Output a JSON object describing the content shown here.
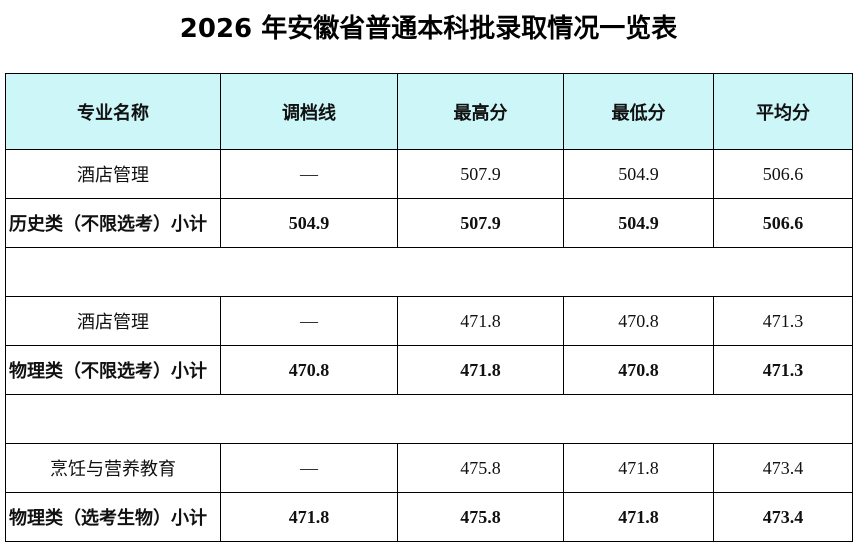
{
  "title": "2026 年安徽省普通本科批录取情况一览表",
  "table": {
    "header": [
      "专业名称",
      "调档线",
      "最高分",
      "最低分",
      "平均分"
    ],
    "rows": [
      [
        "酒店管理",
        "—",
        507.9,
        504.9,
        506.6
      ],
      [
        "历史类（不限选考）小计",
        504.9,
        507.9,
        504.9,
        506.6
      ],
      [
        "酒店管理",
        "—",
        471.8,
        470.8,
        471.3
      ],
      [
        "物理类（不限选考）小计",
        470.8,
        471.8,
        470.8,
        471.3
      ],
      [
        "烹饪与营养教育",
        "—",
        475.8,
        471.8,
        473.4
      ],
      [
        "物理类（选考生物）小计",
        471.8,
        475.8,
        471.8,
        473.4
      ]
    ]
  }
}
